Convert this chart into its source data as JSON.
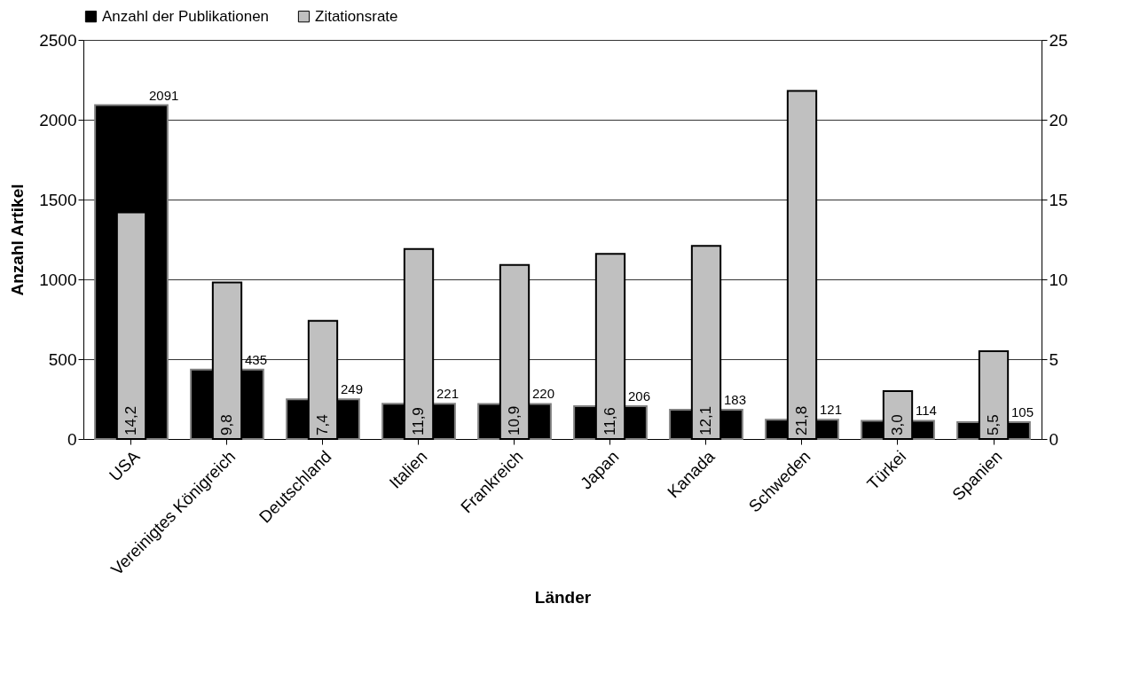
{
  "chart_data": {
    "type": "bar",
    "xlabel": "Länder",
    "ylabel": "Anzahl Artikel",
    "categories": [
      "USA",
      "Vereinigtes Königreich",
      "Deutschland",
      "Italien",
      "Frankreich",
      "Japan",
      "Kanada",
      "Schweden",
      "Türkei",
      "Spanien"
    ],
    "series": [
      {
        "name": "Anzahl der Publikationen",
        "color": "#000000",
        "values": [
          2091,
          435,
          249,
          221,
          220,
          206,
          183,
          121,
          114,
          105
        ],
        "value_labels": [
          "2091",
          "435",
          "249",
          "221",
          "220",
          "206",
          "183",
          "121",
          "114",
          "105"
        ]
      },
      {
        "name": "Zitationsrate",
        "color": "#c0c0c0",
        "axis": "y2",
        "values": [
          14.2,
          9.8,
          7.4,
          11.9,
          10.9,
          11.6,
          12.1,
          21.8,
          3.0,
          5.5
        ],
        "value_labels": [
          "14,2",
          "9,8",
          "7,4",
          "11,9",
          "10,9",
          "11,6",
          "12,1",
          "21,8",
          "3,0",
          "5,5"
        ]
      }
    ],
    "ylim": [
      0,
      2500
    ],
    "yticks": [
      0,
      500,
      1000,
      1500,
      2000,
      2500
    ],
    "y2lim": [
      0,
      25
    ],
    "y2ticks": [
      0,
      5,
      10,
      15,
      20,
      25
    ],
    "grid": "y",
    "legend": "top"
  }
}
